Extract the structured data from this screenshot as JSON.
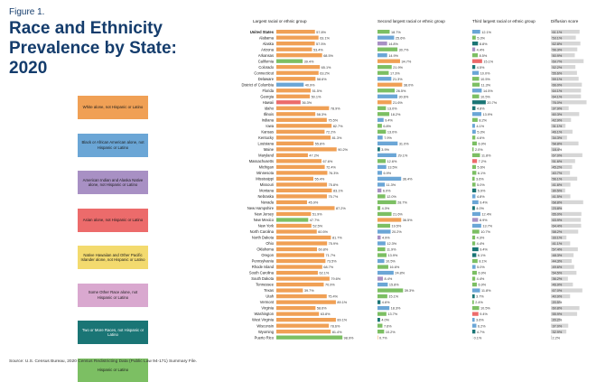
{
  "figure": {
    "label": "Figure 1.",
    "title": "Race and Ethnicity Prevalence by State: 2020",
    "source": "Source: U.S. Census Bureau, 2020 Census Redistricting Data (Public Law 94-171) Summary File."
  },
  "colors": {
    "white": "#f0a055",
    "black": "#6ba6d6",
    "aian": "#a890c4",
    "asian": "#ec6b6b",
    "nhpi": "#f3da6e",
    "sor": "#d9a8cf",
    "multi": "#1a7575",
    "hispanic": "#7cbf63",
    "header": "#143c6c"
  },
  "legend": [
    {
      "label": "White alone, not Hispanic or Latino",
      "key": "white"
    },
    {
      "label": "Black or African American alone, not Hispanic or Latino",
      "key": "black"
    },
    {
      "label": "American Indian and Alaska Native alone, not Hispanic or Latino",
      "key": "aian"
    },
    {
      "label": "Asian alone, not Hispanic or Latino",
      "key": "asian"
    },
    {
      "label": "Native Hawaiian and Other Pacific Islander alone, not Hispanic or Latino",
      "key": "nhpi"
    },
    {
      "label": "Some Other Race alone, not Hispanic or Latino",
      "key": "sor"
    },
    {
      "label": "Two or More Races, not Hispanic or Latino",
      "key": "multi"
    },
    {
      "label": "Hispanic or Latino",
      "key": "hispanic"
    }
  ],
  "chart_data": {
    "type": "bar",
    "columns": [
      "Largest racial or ethnic group",
      "Second largest racial or ethnic group",
      "Third largest racial or ethnic group",
      "Diffusion score"
    ],
    "rows": [
      {
        "state": "United States",
        "first": [
          57.8,
          "white"
        ],
        "second": [
          18.7,
          "hispanic"
        ],
        "third": [
          12.1,
          "black"
        ],
        "diffusion": 61.1
      },
      {
        "state": "Alabama",
        "first": [
          63.1,
          "white"
        ],
        "second": [
          25.6,
          "black"
        ],
        "third": [
          5.3,
          "hispanic"
        ],
        "diffusion": 53.1
      },
      {
        "state": "Alaska",
        "first": [
          57.5,
          "white"
        ],
        "second": [
          14.8,
          "aian"
        ],
        "third": [
          8.8,
          "multi"
        ],
        "diffusion": 62.8
      },
      {
        "state": "Arizona",
        "first": [
          53.4,
          "white"
        ],
        "second": [
          30.7,
          "hispanic"
        ],
        "third": [
          4.4,
          "aian"
        ],
        "diffusion": 56.3
      },
      {
        "state": "Arkansas",
        "first": [
          68.5,
          "white"
        ],
        "second": [
          14.9,
          "black"
        ],
        "third": [
          8.5,
          "hispanic"
        ],
        "diffusion": 50.9
      },
      {
        "state": "California",
        "first": [
          39.4,
          "hispanic"
        ],
        "second": [
          34.7,
          "white"
        ],
        "third": [
          15.1,
          "asian"
        ],
        "diffusion": 69.7
      },
      {
        "state": "Colorado",
        "first": [
          65.1,
          "white"
        ],
        "second": [
          21.9,
          "hispanic"
        ],
        "third": [
          4.5,
          "multi"
        ],
        "diffusion": 52.2
      },
      {
        "state": "Connecticut",
        "first": [
          63.2,
          "white"
        ],
        "second": [
          17.3,
          "hispanic"
        ],
        "third": [
          10.0,
          "black"
        ],
        "diffusion": 55.6
      },
      {
        "state": "Delaware",
        "first": [
          58.6,
          "white"
        ],
        "second": [
          21.3,
          "black"
        ],
        "third": [
          10.5,
          "hispanic"
        ],
        "diffusion": 59.1
      },
      {
        "state": "District of Columbia",
        "first": [
          40.9,
          "black"
        ],
        "second": [
          38.0,
          "white"
        ],
        "third": [
          11.3,
          "hispanic"
        ],
        "diffusion": 66.0
      },
      {
        "state": "Florida",
        "first": [
          51.5,
          "white"
        ],
        "second": [
          26.5,
          "hispanic"
        ],
        "third": [
          14.5,
          "black"
        ],
        "diffusion": 64.1
      },
      {
        "state": "Georgia",
        "first": [
          50.1,
          "white"
        ],
        "second": [
          30.6,
          "black"
        ],
        "third": [
          10.5,
          "hispanic"
        ],
        "diffusion": 64.1
      },
      {
        "state": "Hawaii",
        "first": [
          36.3,
          "asian"
        ],
        "second": [
          21.6,
          "white"
        ],
        "third": [
          20.7,
          "multi"
        ],
        "diffusion": 76.0
      },
      {
        "state": "Idaho",
        "first": [
          78.9,
          "white"
        ],
        "second": [
          13.0,
          "hispanic"
        ],
        "third": [
          4.8,
          "multi"
        ],
        "diffusion": 37.9
      },
      {
        "state": "Illinois",
        "first": [
          58.3,
          "white"
        ],
        "second": [
          18.2,
          "hispanic"
        ],
        "third": [
          13.9,
          "black"
        ],
        "diffusion": 60.3
      },
      {
        "state": "Indiana",
        "first": [
          75.5,
          "white"
        ],
        "second": [
          9.4,
          "black"
        ],
        "third": [
          8.2,
          "hispanic"
        ],
        "diffusion": 42.9
      },
      {
        "state": "Iowa",
        "first": [
          82.7,
          "white"
        ],
        "second": [
          6.8,
          "hispanic"
        ],
        "third": [
          4.1,
          "black"
        ],
        "diffusion": 31.1
      },
      {
        "state": "Kansas",
        "first": [
          72.2,
          "white"
        ],
        "second": [
          13.0,
          "hispanic"
        ],
        "third": [
          5.3,
          "black"
        ],
        "diffusion": 46.1
      },
      {
        "state": "Kentucky",
        "first": [
          81.3,
          "white"
        ],
        "second": [
          7.9,
          "black"
        ],
        "third": [
          4.6,
          "hispanic"
        ],
        "diffusion": 34.3
      },
      {
        "state": "Louisiana",
        "first": [
          55.8,
          "white"
        ],
        "second": [
          31.0,
          "black"
        ],
        "third": [
          6.9,
          "hispanic"
        ],
        "diffusion": 58.8
      },
      {
        "state": "Maine",
        "first": [
          90.2,
          "white"
        ],
        "second": [
          3.9,
          "multi"
        ],
        "third": [
          2.0,
          "hispanic"
        ],
        "diffusion": 18.4
      },
      {
        "state": "Maryland",
        "first": [
          47.2,
          "white"
        ],
        "second": [
          29.1,
          "black"
        ],
        "third": [
          11.8,
          "hispanic"
        ],
        "diffusion": 67.0
      },
      {
        "state": "Massachusetts",
        "first": [
          67.6,
          "white"
        ],
        "second": [
          12.6,
          "hispanic"
        ],
        "third": [
          7.2,
          "asian"
        ],
        "diffusion": 51.6
      },
      {
        "state": "Michigan",
        "first": [
          72.4,
          "white"
        ],
        "second": [
          13.5,
          "black"
        ],
        "third": [
          5.6,
          "hispanic"
        ],
        "diffusion": 45.2
      },
      {
        "state": "Minnesota",
        "first": [
          76.3,
          "white"
        ],
        "second": [
          6.9,
          "black"
        ],
        "third": [
          6.1,
          "hispanic"
        ],
        "diffusion": 40.7
      },
      {
        "state": "Mississippi",
        "first": [
          55.4,
          "white"
        ],
        "second": [
          36.4,
          "black"
        ],
        "third": [
          3.6,
          "hispanic"
        ],
        "diffusion": 56.1
      },
      {
        "state": "Missouri",
        "first": [
          75.8,
          "white"
        ],
        "second": [
          11.3,
          "black"
        ],
        "third": [
          5.0,
          "hispanic"
        ],
        "diffusion": 41.6
      },
      {
        "state": "Montana",
        "first": [
          83.1,
          "white"
        ],
        "second": [
          6.0,
          "aian"
        ],
        "third": [
          5.9,
          "multi"
        ],
        "diffusion": 30.5
      },
      {
        "state": "Nebraska",
        "first": [
          75.7,
          "white"
        ],
        "second": [
          12.0,
          "hispanic"
        ],
        "third": [
          4.8,
          "black"
        ],
        "diffusion": 41.5
      },
      {
        "state": "Nevada",
        "first": [
          45.9,
          "white"
        ],
        "second": [
          28.7,
          "hispanic"
        ],
        "third": [
          9.4,
          "black"
        ],
        "diffusion": 68.8
      },
      {
        "state": "New Hampshire",
        "first": [
          87.2,
          "white"
        ],
        "second": [
          4.3,
          "hispanic"
        ],
        "third": [
          4.0,
          "multi"
        ],
        "diffusion": 23.8
      },
      {
        "state": "New Jersey",
        "first": [
          51.9,
          "white"
        ],
        "second": [
          21.6,
          "hispanic"
        ],
        "third": [
          12.4,
          "black"
        ],
        "diffusion": 65.0
      },
      {
        "state": "New Mexico",
        "first": [
          47.7,
          "hispanic"
        ],
        "second": [
          36.5,
          "white"
        ],
        "third": [
          8.9,
          "aian"
        ],
        "diffusion": 63.9
      },
      {
        "state": "New York",
        "first": [
          52.5,
          "white"
        ],
        "second": [
          19.5,
          "hispanic"
        ],
        "third": [
          13.7,
          "black"
        ],
        "diffusion": 64.4
      },
      {
        "state": "North Carolina",
        "first": [
          60.5,
          "white"
        ],
        "second": [
          20.2,
          "black"
        ],
        "third": [
          10.7,
          "hispanic"
        ],
        "diffusion": 58.2
      },
      {
        "state": "North Dakota",
        "first": [
          81.7,
          "white"
        ],
        "second": [
          4.9,
          "aian"
        ],
        "third": [
          4.3,
          "hispanic"
        ],
        "diffusion": 33.1
      },
      {
        "state": "Ohio",
        "first": [
          75.9,
          "white"
        ],
        "second": [
          12.3,
          "black"
        ],
        "third": [
          4.4,
          "hispanic"
        ],
        "diffusion": 41.1
      },
      {
        "state": "Oklahoma",
        "first": [
          60.8,
          "white"
        ],
        "second": [
          11.9,
          "hispanic"
        ],
        "third": [
          9.4,
          "multi"
        ],
        "diffusion": 57.4
      },
      {
        "state": "Oregon",
        "first": [
          71.7,
          "white"
        ],
        "second": [
          13.9,
          "hispanic"
        ],
        "third": [
          6.1,
          "multi"
        ],
        "diffusion": 48.3
      },
      {
        "state": "Pennsylvania",
        "first": [
          73.5,
          "white"
        ],
        "second": [
          10.5,
          "black"
        ],
        "third": [
          8.1,
          "hispanic"
        ],
        "diffusion": 44.3
      },
      {
        "state": "Rhode Island",
        "first": [
          68.7,
          "white"
        ],
        "second": [
          16.6,
          "hispanic"
        ],
        "third": [
          5.0,
          "black"
        ],
        "diffusion": 49.6
      },
      {
        "state": "South Carolina",
        "first": [
          62.1,
          "white"
        ],
        "second": [
          24.8,
          "black"
        ],
        "third": [
          6.9,
          "hispanic"
        ],
        "diffusion": 54.5
      },
      {
        "state": "South Dakota",
        "first": [
          79.6,
          "white"
        ],
        "second": [
          8.4,
          "aian"
        ],
        "third": [
          4.4,
          "hispanic"
        ],
        "diffusion": 36.2
      },
      {
        "state": "Tennessee",
        "first": [
          70.9,
          "white"
        ],
        "second": [
          15.8,
          "black"
        ],
        "third": [
          6.9,
          "hispanic"
        ],
        "diffusion": 46.9
      },
      {
        "state": "Texas",
        "first": [
          39.7,
          "white"
        ],
        "second": [
          39.3,
          "hispanic"
        ],
        "third": [
          11.8,
          "black"
        ],
        "diffusion": 67.0
      },
      {
        "state": "Utah",
        "first": [
          75.4,
          "white"
        ],
        "second": [
          15.1,
          "hispanic"
        ],
        "third": [
          3.7,
          "multi"
        ],
        "diffusion": 40.9
      },
      {
        "state": "Vermont",
        "first": [
          89.1,
          "white"
        ],
        "second": [
          4.6,
          "multi"
        ],
        "third": [
          2.4,
          "hispanic"
        ],
        "diffusion": 20.5
      },
      {
        "state": "Virginia",
        "first": [
          58.6,
          "white"
        ],
        "second": [
          18.3,
          "black"
        ],
        "third": [
          10.5,
          "hispanic"
        ],
        "diffusion": 60.8
      },
      {
        "state": "Washington",
        "first": [
          63.8,
          "white"
        ],
        "second": [
          13.7,
          "hispanic"
        ],
        "third": [
          9.4,
          "asian"
        ],
        "diffusion": 55.9
      },
      {
        "state": "West Virginia",
        "first": [
          89.1,
          "white"
        ],
        "second": [
          4.0,
          "multi"
        ],
        "third": [
          3.6,
          "black"
        ],
        "diffusion": 20.2
      },
      {
        "state": "Wisconsin",
        "first": [
          78.6,
          "white"
        ],
        "second": [
          7.6,
          "hispanic"
        ],
        "third": [
          6.2,
          "black"
        ],
        "diffusion": 37.0
      },
      {
        "state": "Wyoming",
        "first": [
          81.4,
          "white"
        ],
        "second": [
          10.2,
          "hispanic"
        ],
        "third": [
          4.7,
          "multi"
        ],
        "diffusion": 32.9
      },
      {
        "state": "Puerto Rico",
        "first": [
          98.9,
          "hispanic"
        ],
        "second": [
          0.7,
          "white"
        ],
        "third": [
          0.1,
          "multi"
        ],
        "diffusion": 2.2
      }
    ]
  }
}
